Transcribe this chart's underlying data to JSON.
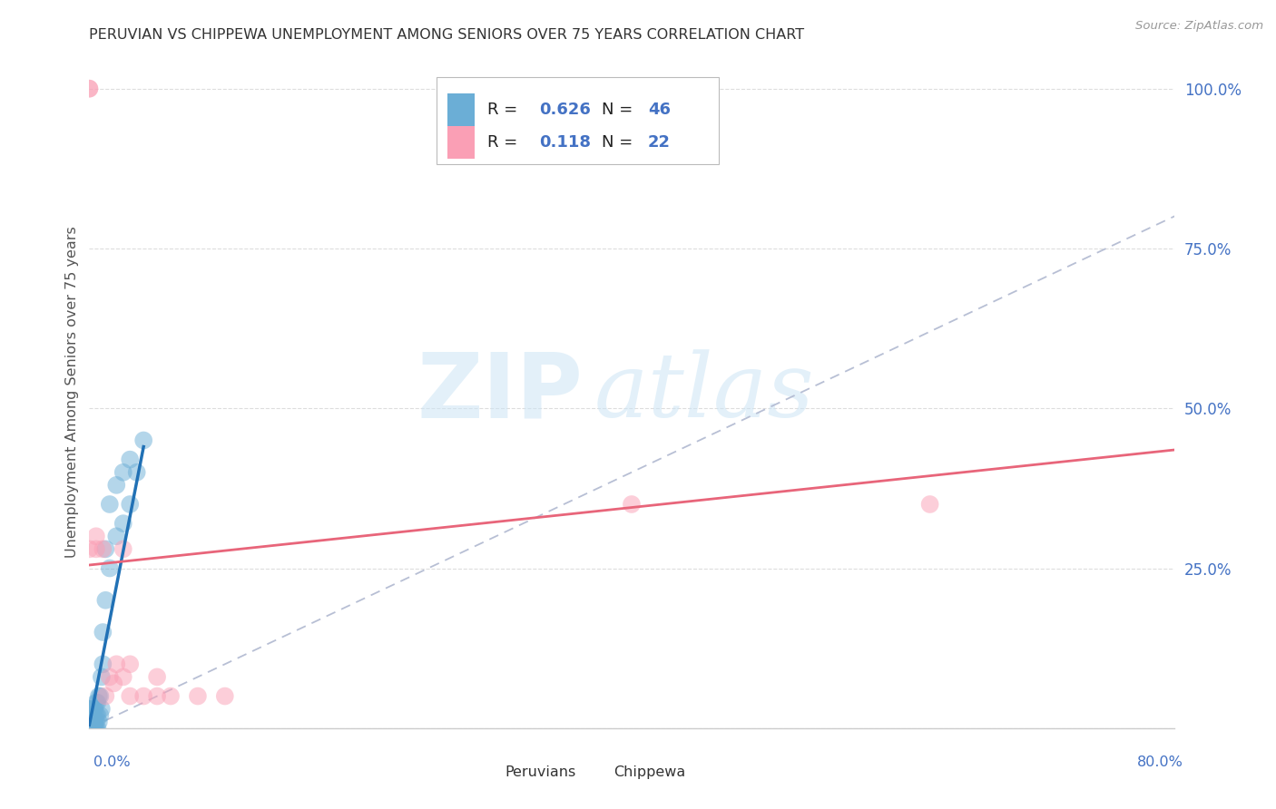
{
  "title": "PERUVIAN VS CHIPPEWA UNEMPLOYMENT AMONG SENIORS OVER 75 YEARS CORRELATION CHART",
  "source": "Source: ZipAtlas.com",
  "ylabel": "Unemployment Among Seniors over 75 years",
  "xlim": [
    0.0,
    0.8
  ],
  "ylim": [
    0.0,
    1.05
  ],
  "yticks": [
    0.0,
    0.25,
    0.5,
    0.75,
    1.0
  ],
  "ytick_labels_right": [
    "",
    "25.0%",
    "50.0%",
    "75.0%",
    "100.0%"
  ],
  "legend_r_peruvian": "0.626",
  "legend_n_peruvian": "46",
  "legend_r_chippewa": "0.118",
  "legend_n_chippewa": "22",
  "color_peruvian": "#6baed6",
  "color_chippewa": "#fa9fb5",
  "color_peruvian_line": "#2171b5",
  "color_chippewa_line": "#e8657a",
  "color_diagonal": "#b0b8d0",
  "color_grid": "#e0e0e0",
  "color_ytick": "#4472c4",
  "color_title": "#333333",
  "color_source": "#999999",
  "peruvian_x": [
    0.0,
    0.0,
    0.0,
    0.0,
    0.0,
    0.0,
    0.001,
    0.001,
    0.001,
    0.002,
    0.002,
    0.002,
    0.003,
    0.003,
    0.003,
    0.003,
    0.004,
    0.004,
    0.004,
    0.005,
    0.005,
    0.005,
    0.005,
    0.006,
    0.006,
    0.006,
    0.007,
    0.007,
    0.008,
    0.008,
    0.009,
    0.009,
    0.01,
    0.01,
    0.012,
    0.012,
    0.015,
    0.015,
    0.02,
    0.02,
    0.025,
    0.025,
    0.03,
    0.03,
    0.035,
    0.04
  ],
  "peruvian_y": [
    0.0,
    0.0,
    0.0,
    0.01,
    0.02,
    0.03,
    0.0,
    0.01,
    0.03,
    0.0,
    0.01,
    0.02,
    0.0,
    0.01,
    0.02,
    0.03,
    0.0,
    0.01,
    0.03,
    0.0,
    0.01,
    0.02,
    0.04,
    0.0,
    0.02,
    0.04,
    0.01,
    0.05,
    0.02,
    0.05,
    0.03,
    0.08,
    0.1,
    0.15,
    0.2,
    0.28,
    0.25,
    0.35,
    0.3,
    0.38,
    0.32,
    0.4,
    0.35,
    0.42,
    0.4,
    0.45
  ],
  "chippewa_x": [
    0.0,
    0.005,
    0.005,
    0.01,
    0.012,
    0.015,
    0.018,
    0.02,
    0.025,
    0.025,
    0.03,
    0.03,
    0.04,
    0.05,
    0.06,
    0.08,
    0.1,
    0.4,
    0.62,
    0.0,
    0.0,
    0.05
  ],
  "chippewa_y": [
    0.28,
    0.28,
    0.3,
    0.28,
    0.05,
    0.08,
    0.07,
    0.1,
    0.28,
    0.08,
    0.05,
    0.1,
    0.05,
    0.05,
    0.05,
    0.05,
    0.05,
    0.35,
    0.35,
    1.0,
    1.0,
    0.08
  ],
  "peruvian_line_x0": 0.0,
  "peruvian_line_y0": 0.005,
  "peruvian_line_x1": 0.04,
  "peruvian_line_y1": 0.44,
  "chippewa_line_x0": 0.0,
  "chippewa_line_y0": 0.255,
  "chippewa_line_x1": 0.8,
  "chippewa_line_y1": 0.435
}
